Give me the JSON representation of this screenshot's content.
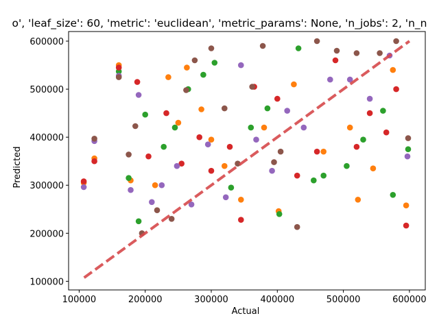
{
  "chart_data": {
    "type": "scatter",
    "title": "o', 'leaf_size': 60, 'metric': 'euclidean', 'metric_params': None, 'n_jobs': 2, 'n_n",
    "xlabel": "Actual",
    "ylabel": "Predicted",
    "xlim": [
      84000,
      624000
    ],
    "ylim": [
      82000,
      620000
    ],
    "xticks": [
      100000,
      200000,
      300000,
      400000,
      500000,
      600000
    ],
    "yticks": [
      100000,
      200000,
      300000,
      400000,
      500000,
      600000
    ],
    "xtick_labels": [
      "100000",
      "200000",
      "300000",
      "400000",
      "500000",
      "600000"
    ],
    "ytick_labels": [
      "100000",
      "200000",
      "300000",
      "400000",
      "500000",
      "600000"
    ],
    "grid": false,
    "reference_line": {
      "style": "dashed",
      "color": "#d6494b",
      "points": [
        [
          107500,
          107500
        ],
        [
          600000,
          600000
        ]
      ]
    },
    "series": [
      {
        "color": "#ff7f0e",
        "points": [
          [
            107000,
            305000
          ],
          [
            123000,
            356000
          ],
          [
            160000,
            550000
          ],
          [
            178000,
            310000
          ],
          [
            215000,
            300000
          ],
          [
            235000,
            525000
          ],
          [
            250000,
            430000
          ],
          [
            263000,
            545000
          ],
          [
            285000,
            458000
          ],
          [
            300000,
            395000
          ],
          [
            320000,
            340000
          ],
          [
            345000,
            270000
          ],
          [
            380000,
            420000
          ],
          [
            402000,
            246000
          ],
          [
            425000,
            510000
          ],
          [
            470000,
            370000
          ],
          [
            510000,
            420000
          ],
          [
            522000,
            270000
          ],
          [
            545000,
            335000
          ],
          [
            575000,
            540000
          ],
          [
            595000,
            258000
          ]
        ]
      },
      {
        "color": "#2ca02c",
        "points": [
          [
            160000,
            537000
          ],
          [
            175000,
            315000
          ],
          [
            190000,
            225000
          ],
          [
            200000,
            447000
          ],
          [
            228000,
            380000
          ],
          [
            245000,
            420000
          ],
          [
            265000,
            500000
          ],
          [
            288000,
            530000
          ],
          [
            305000,
            555000
          ],
          [
            330000,
            295000
          ],
          [
            360000,
            420000
          ],
          [
            385000,
            460000
          ],
          [
            403000,
            240000
          ],
          [
            432000,
            585000
          ],
          [
            455000,
            310000
          ],
          [
            470000,
            320000
          ],
          [
            505000,
            340000
          ],
          [
            530000,
            395000
          ],
          [
            560000,
            455000
          ],
          [
            575000,
            280000
          ],
          [
            598000,
            375000
          ]
        ]
      },
      {
        "color": "#d62728",
        "points": [
          [
            107000,
            308000
          ],
          [
            123000,
            350000
          ],
          [
            160000,
            545000
          ],
          [
            188000,
            515000
          ],
          [
            205000,
            360000
          ],
          [
            232000,
            450000
          ],
          [
            255000,
            345000
          ],
          [
            282000,
            400000
          ],
          [
            300000,
            330000
          ],
          [
            328000,
            380000
          ],
          [
            345000,
            228000
          ],
          [
            365000,
            505000
          ],
          [
            400000,
            480000
          ],
          [
            430000,
            320000
          ],
          [
            460000,
            370000
          ],
          [
            488000,
            560000
          ],
          [
            520000,
            380000
          ],
          [
            540000,
            450000
          ],
          [
            565000,
            410000
          ],
          [
            580000,
            500000
          ],
          [
            595000,
            216000
          ]
        ]
      },
      {
        "color": "#9467bd",
        "points": [
          [
            107000,
            296000
          ],
          [
            123000,
            392000
          ],
          [
            160000,
            528000
          ],
          [
            178000,
            290000
          ],
          [
            190000,
            488000
          ],
          [
            210000,
            265000
          ],
          [
            225000,
            300000
          ],
          [
            248000,
            340000
          ],
          [
            270000,
            260000
          ],
          [
            295000,
            385000
          ],
          [
            322000,
            275000
          ],
          [
            345000,
            550000
          ],
          [
            368000,
            395000
          ],
          [
            392000,
            330000
          ],
          [
            415000,
            455000
          ],
          [
            440000,
            420000
          ],
          [
            480000,
            520000
          ],
          [
            510000,
            520000
          ],
          [
            540000,
            480000
          ],
          [
            570000,
            570000
          ],
          [
            597000,
            360000
          ]
        ]
      },
      {
        "color": "#8c564b",
        "points": [
          [
            123000,
            397000
          ],
          [
            160000,
            525000
          ],
          [
            175000,
            364000
          ],
          [
            185000,
            423000
          ],
          [
            195000,
            200000
          ],
          [
            218000,
            248000
          ],
          [
            240000,
            230000
          ],
          [
            262000,
            498000
          ],
          [
            275000,
            560000
          ],
          [
            300000,
            585000
          ],
          [
            320000,
            460000
          ],
          [
            340000,
            345000
          ],
          [
            362000,
            505000
          ],
          [
            378000,
            590000
          ],
          [
            395000,
            348000
          ],
          [
            405000,
            370000
          ],
          [
            430000,
            213000
          ],
          [
            460000,
            600000
          ],
          [
            490000,
            580000
          ],
          [
            520000,
            575000
          ],
          [
            555000,
            575000
          ],
          [
            580000,
            600000
          ],
          [
            598000,
            398000
          ]
        ]
      }
    ]
  }
}
